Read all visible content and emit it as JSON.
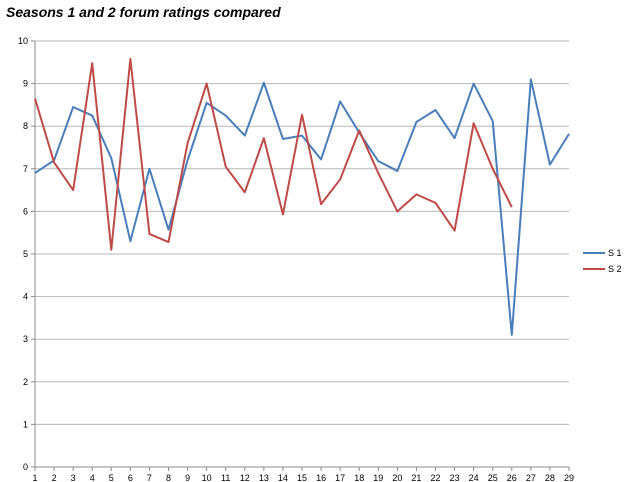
{
  "chart_data": {
    "type": "line",
    "title": "Seasons 1 and 2 forum ratings compared",
    "xlabel": "",
    "ylabel": "",
    "x": [
      1,
      2,
      3,
      4,
      5,
      6,
      7,
      8,
      9,
      10,
      11,
      12,
      13,
      14,
      15,
      16,
      17,
      18,
      19,
      20,
      21,
      22,
      23,
      24,
      25,
      26,
      27,
      28,
      29
    ],
    "ylim": [
      0,
      10
    ],
    "yticks": [
      0,
      1,
      2,
      3,
      4,
      5,
      6,
      7,
      8,
      9,
      10
    ],
    "grid": true,
    "legend": "right",
    "series": [
      {
        "name": "S 1",
        "color": "#4a7ebb",
        "values": [
          6.9,
          7.2,
          8.45,
          8.25,
          7.25,
          5.3,
          7.0,
          5.57,
          7.2,
          8.55,
          8.25,
          7.78,
          9.02,
          7.7,
          7.78,
          7.22,
          8.58,
          7.85,
          7.18,
          6.95,
          8.1,
          8.38,
          7.72,
          9.0,
          8.12,
          3.1,
          9.1,
          7.1,
          7.82
        ]
      },
      {
        "name": "S 2",
        "color": "#be4b48",
        "values": [
          8.65,
          7.15,
          6.5,
          9.48,
          5.1,
          9.58,
          5.47,
          5.28,
          7.6,
          9.0,
          7.05,
          6.45,
          7.72,
          5.93,
          8.27,
          6.17,
          6.75,
          7.9,
          6.9,
          6.0,
          6.4,
          6.2,
          5.55,
          8.07,
          7.0,
          6.1,
          null,
          null,
          null
        ]
      }
    ]
  }
}
